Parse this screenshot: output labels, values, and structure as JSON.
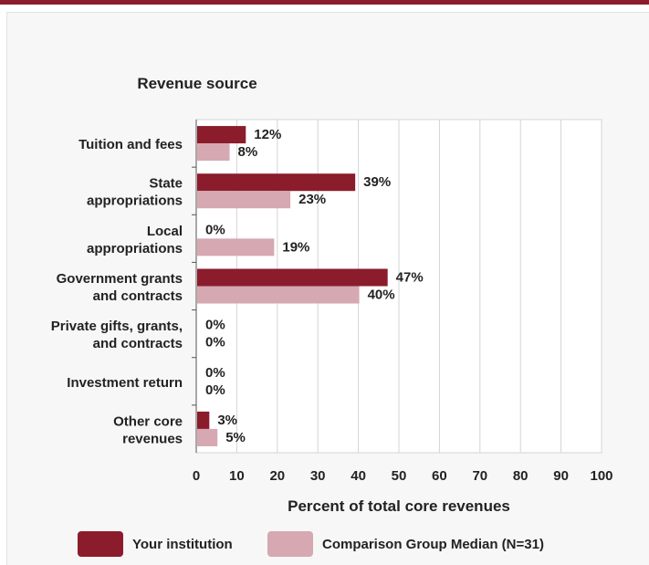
{
  "chart_data": {
    "type": "bar",
    "orientation": "horizontal",
    "title": "Revenue source",
    "xlabel": "Percent of total core revenues",
    "xlim": [
      0,
      100
    ],
    "xticks": [
      "0",
      "10",
      "20",
      "30",
      "40",
      "50",
      "60",
      "70",
      "80",
      "90",
      "100"
    ],
    "grid": true,
    "legend_position": "bottom",
    "categories": [
      [
        "Tuition and fees"
      ],
      [
        "State",
        "appropriations"
      ],
      [
        "Local",
        "appropriations"
      ],
      [
        "Government grants",
        "and contracts"
      ],
      [
        "Private gifts, grants,",
        "and contracts"
      ],
      [
        "Investment return"
      ],
      [
        "Other core",
        "revenues"
      ]
    ],
    "series": [
      {
        "name": "Your institution",
        "color": "#8b1c2c",
        "values": [
          12,
          39,
          0,
          47,
          0,
          0,
          3
        ],
        "labels": [
          "12%",
          "39%",
          "0%",
          "47%",
          "0%",
          "0%",
          "3%"
        ]
      },
      {
        "name": "Comparison Group Median (N=31)",
        "color": "#d6a8b2",
        "values": [
          8,
          23,
          19,
          40,
          0,
          0,
          5
        ],
        "labels": [
          "8%",
          "23%",
          "19%",
          "40%",
          "0%",
          "0%",
          "5%"
        ]
      }
    ]
  }
}
